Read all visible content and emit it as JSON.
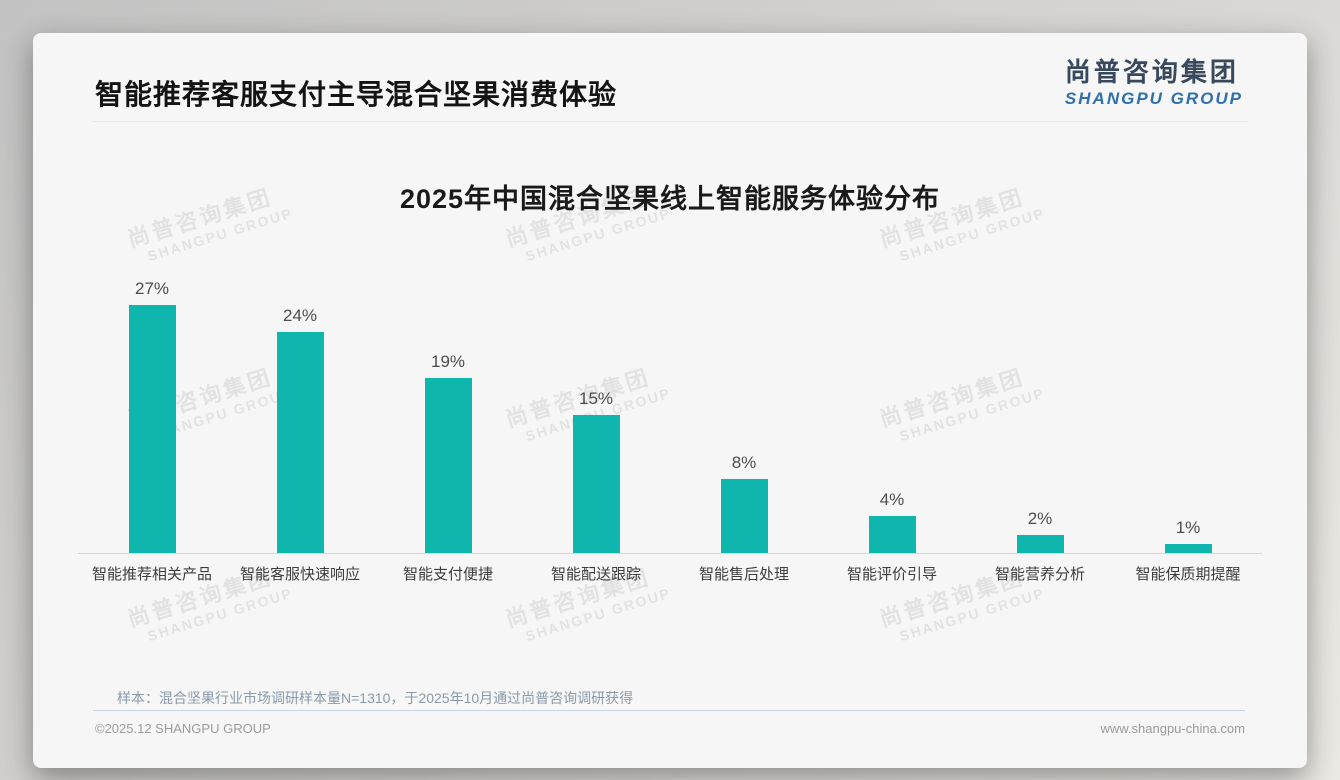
{
  "page": {
    "header": {
      "title": "智能推荐客服支付主导混合坚果消费体验"
    },
    "logo": {
      "cn": "尚普咨询集团",
      "en": "SHANGPU GROUP"
    },
    "watermark": {
      "cn": "尚普咨询集团",
      "en": "SHANGPU GROUP"
    },
    "note": "样本：混合坚果行业市场调研样本量N=1310，于2025年10月通过尚普咨询调研获得",
    "footer": {
      "left": "©2025.12 SHANGPU GROUP",
      "right": "www.shangpu-china.com"
    }
  },
  "chart_data": {
    "type": "bar",
    "title": "2025年中国混合坚果线上智能服务体验分布",
    "categories": [
      "智能推荐相关产品",
      "智能客服快速响应",
      "智能支付便捷",
      "智能配送跟踪",
      "智能售后处理",
      "智能评价引导",
      "智能营养分析",
      "智能保质期提醒"
    ],
    "values": [
      27,
      24,
      19,
      15,
      8,
      4,
      2,
      1
    ],
    "value_labels": [
      "27%",
      "24%",
      "19%",
      "15%",
      "8%",
      "4%",
      "2%",
      "1%"
    ],
    "unit": "%",
    "ylim": [
      0,
      28
    ],
    "grid": false,
    "legend": "none",
    "bar_color": "#0eb6ad"
  },
  "colors": {
    "bar": "#0eb6ad",
    "logo_cn": "#38495e",
    "logo_en": "#2e6fad",
    "note_text": "#8b99ab",
    "footer_divider": "#c9d3de",
    "footer_text": "#9b9b9b"
  }
}
